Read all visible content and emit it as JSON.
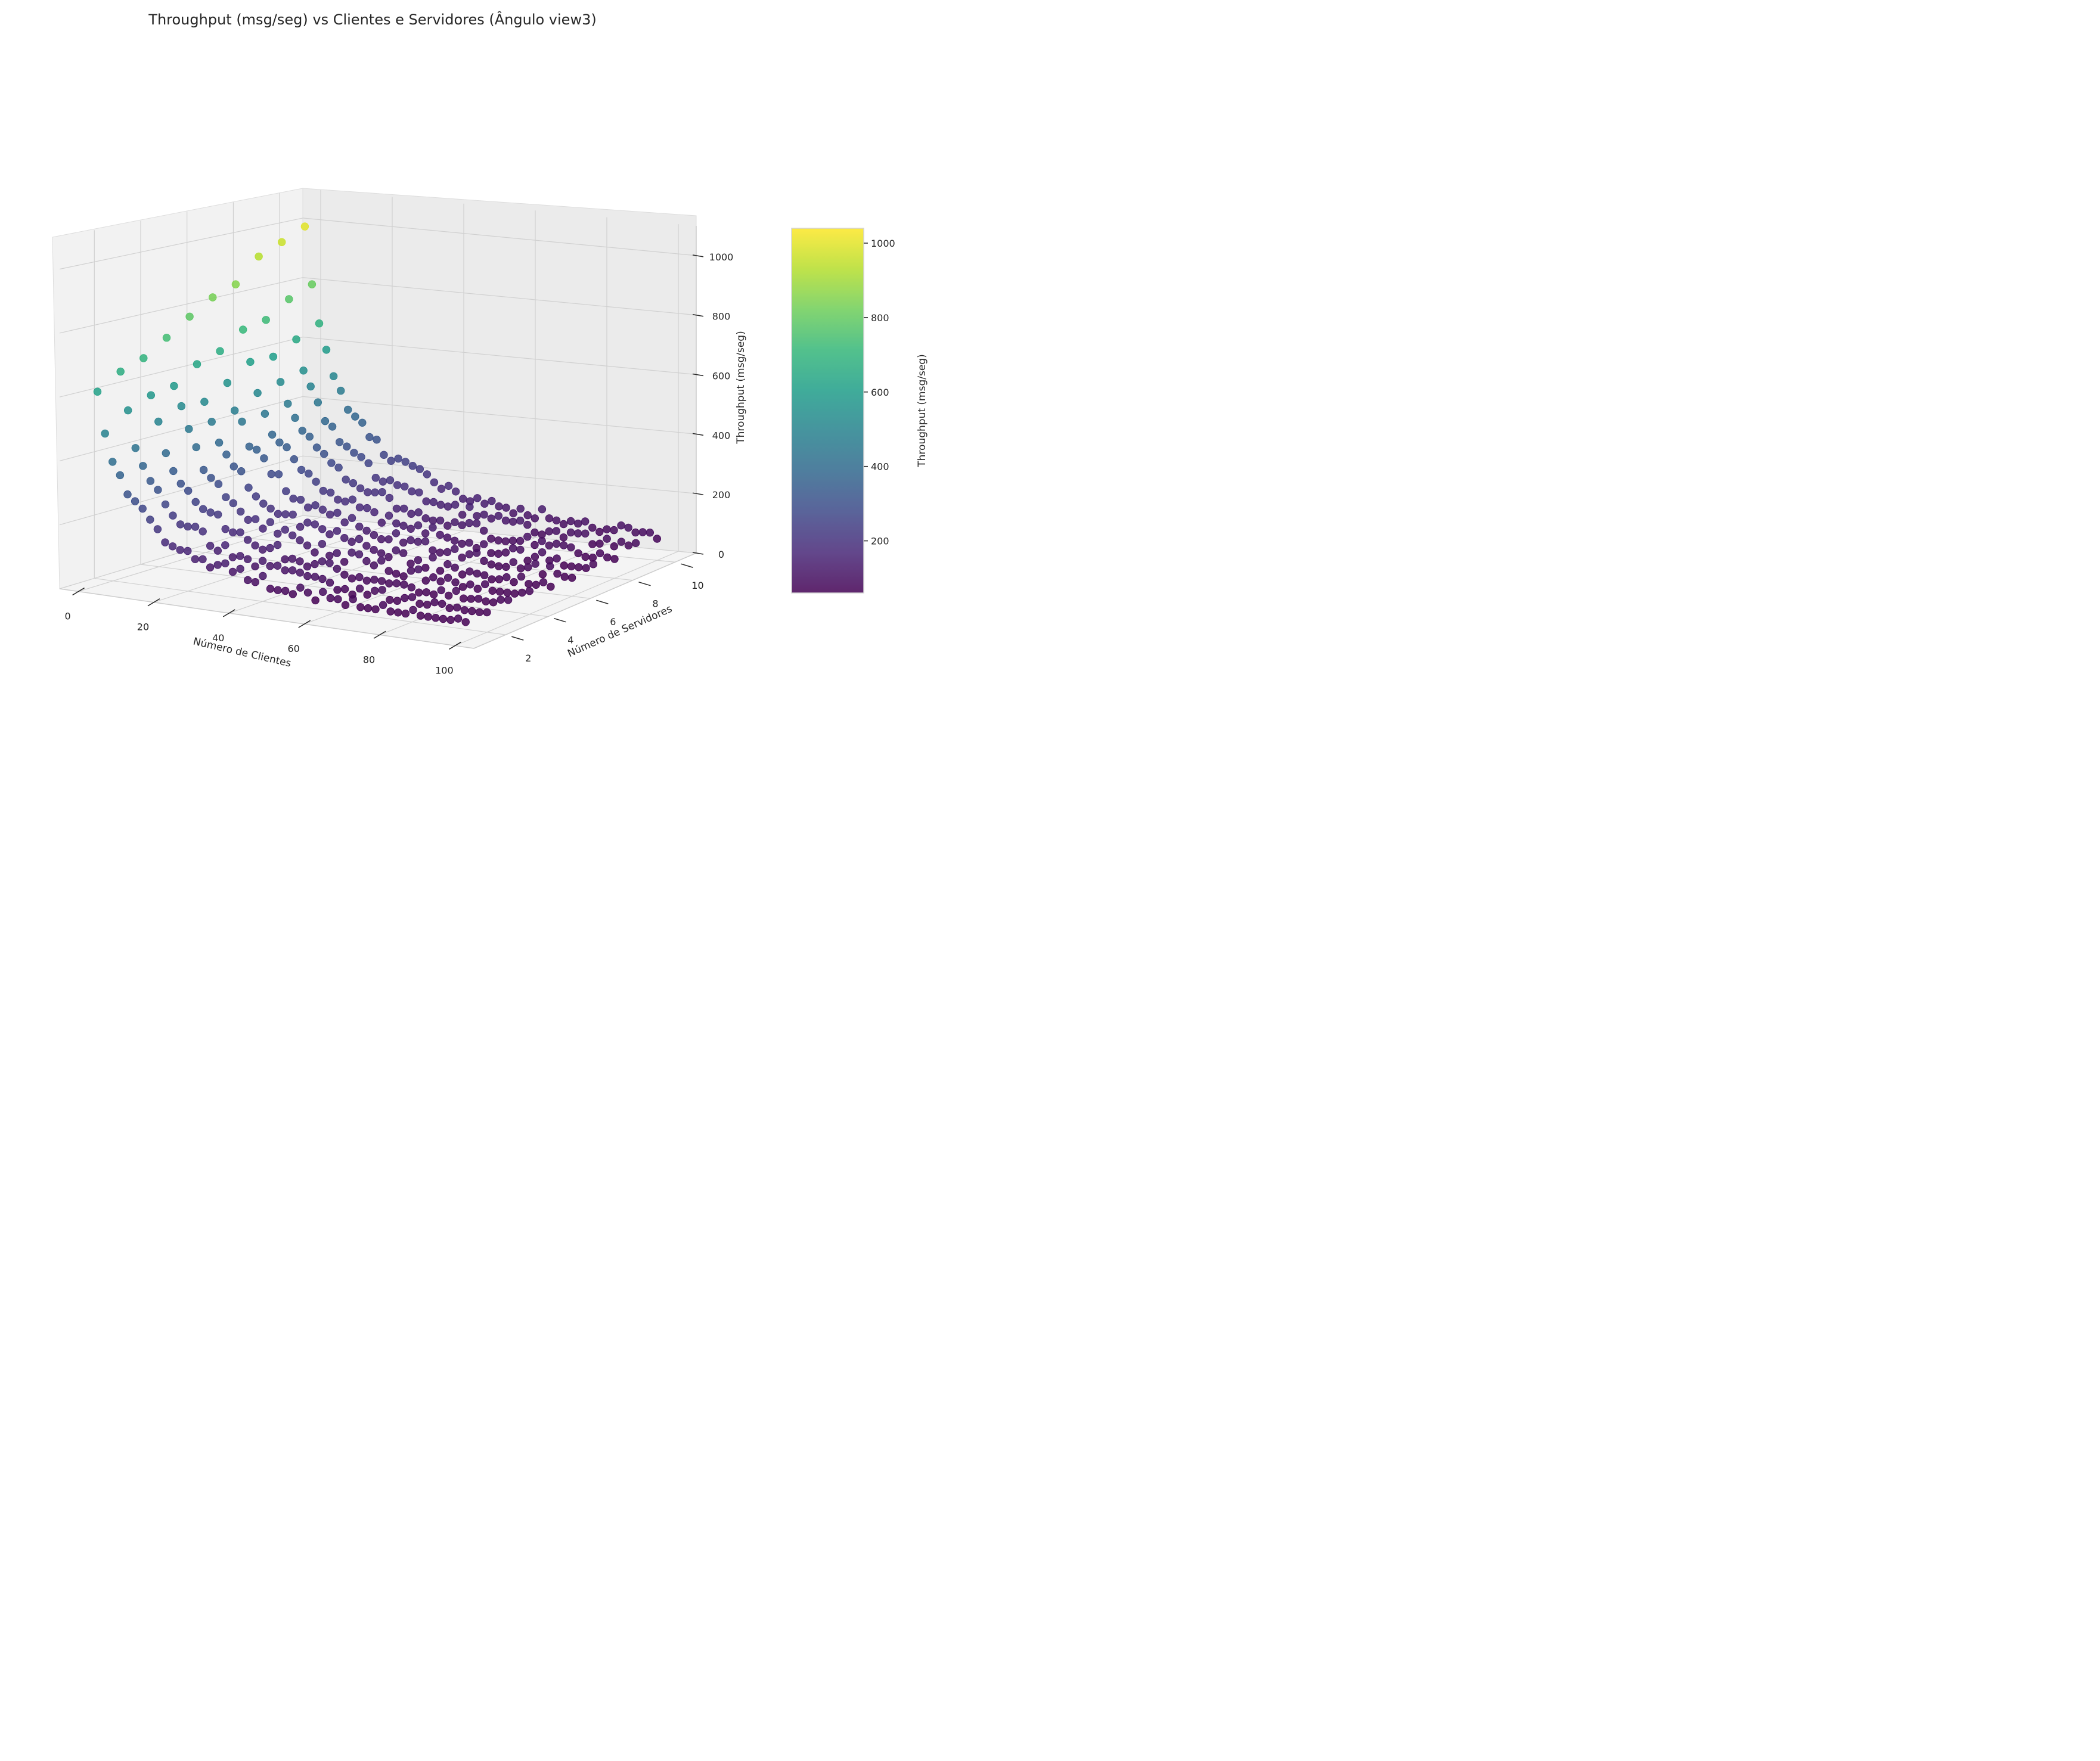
{
  "chart_data": {
    "type": "scatter",
    "projection": "3d",
    "title": "Throughput (msg/seg) vs Clientes e Servidores (Ângulo view3)",
    "xlabel": "Número de Clientes",
    "ylabel": "Número de Servidores",
    "zlabel": "Throughput (msg/seg)",
    "xlim": [
      -5,
      105
    ],
    "ylim": [
      0.5,
      11
    ],
    "zlim": [
      0,
      1100
    ],
    "xticks": [
      "0",
      "20",
      "40",
      "60",
      "80",
      "100"
    ],
    "yticks": [
      "2",
      "4",
      "6",
      "8",
      "10"
    ],
    "zticks": [
      "0",
      "200",
      "400",
      "600",
      "800",
      "1000"
    ],
    "grid": true,
    "colormap": "viridis",
    "colorbar": {
      "label": "Throughput (msg/seg)",
      "range": [
        60,
        1040
      ],
      "ticks": [
        "200",
        "400",
        "600",
        "800",
        "1000"
      ],
      "colors": [
        "#440154",
        "#482878",
        "#3e4989",
        "#31688e",
        "#26828e",
        "#1f9e89",
        "#35b779",
        "#6ece58",
        "#b5de2b",
        "#fde725"
      ]
    },
    "series": [
      {
        "clients": [
          2,
          4,
          6,
          8,
          10,
          12,
          14,
          16,
          18,
          20,
          22,
          24,
          26,
          28,
          30,
          32,
          34,
          36,
          38,
          40,
          42,
          44,
          46,
          48,
          50,
          52,
          54,
          56,
          58,
          60,
          62,
          64,
          66,
          68,
          70,
          72,
          74,
          76,
          78,
          80,
          82,
          84,
          86,
          88,
          90,
          92,
          94,
          96,
          98,
          100
        ],
        "servers": [
          1,
          2,
          3,
          4,
          5,
          6,
          7,
          8,
          9,
          10
        ],
        "throughput_model": "approx. 1000 / (1 + 0.12*(clients-2)) scaled by server count; values range from about 60 to 1040 msg/seg"
      }
    ]
  }
}
